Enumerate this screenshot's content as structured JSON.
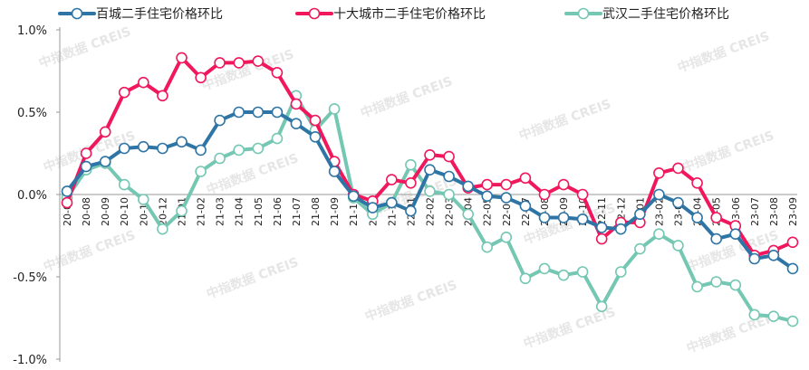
{
  "watermark": "中指数据 CREIS",
  "chart_data": {
    "type": "line",
    "title": "",
    "xlabel": "",
    "ylabel": "",
    "ylim": [
      -1.0,
      1.0
    ],
    "yticks": [
      1.0,
      0.5,
      0.0,
      -0.5,
      -1.0
    ],
    "ytick_labels": [
      "1.0%",
      "0.5%",
      "0.0%",
      "-0.5%",
      "-1.0%"
    ],
    "categories": [
      "20-07",
      "20-08",
      "20-09",
      "20-10",
      "20-11",
      "20-12",
      "21-01",
      "21-02",
      "21-03",
      "21-04",
      "21-05",
      "21-06",
      "21-07",
      "21-08",
      "21-09",
      "21-10",
      "21-11",
      "21-12",
      "22-01",
      "22-02",
      "22-03",
      "22-04",
      "22-05",
      "22-06",
      "22-07",
      "22-08",
      "22-09",
      "22-10",
      "22-11",
      "22-12",
      "23-01",
      "23-02",
      "23-03",
      "23-04",
      "23-05",
      "23-06",
      "23-07",
      "23-08",
      "23-09"
    ],
    "legend_position": "top",
    "grid": false,
    "series": [
      {
        "name": "百城二手住宅价格环比",
        "color": "#2e75a6",
        "values": [
          0.02,
          0.17,
          0.2,
          0.28,
          0.29,
          0.28,
          0.32,
          0.27,
          0.45,
          0.5,
          0.5,
          0.5,
          0.43,
          0.35,
          0.14,
          -0.01,
          -0.08,
          -0.05,
          -0.1,
          0.15,
          0.11,
          0.05,
          -0.01,
          -0.02,
          -0.07,
          -0.14,
          -0.14,
          -0.15,
          -0.2,
          -0.21,
          -0.12,
          0.0,
          -0.05,
          -0.14,
          -0.27,
          -0.24,
          -0.39,
          -0.37,
          -0.45
        ]
      },
      {
        "name": "十大城市二手住宅价格环比",
        "color": "#f0175c",
        "values": [
          -0.05,
          0.25,
          0.38,
          0.62,
          0.68,
          0.6,
          0.83,
          0.71,
          0.8,
          0.8,
          0.81,
          0.74,
          0.55,
          0.45,
          0.2,
          0.0,
          -0.04,
          0.09,
          0.07,
          0.24,
          0.23,
          0.04,
          0.06,
          0.06,
          0.1,
          0.0,
          0.06,
          0.0,
          -0.27,
          -0.17,
          -0.17,
          0.13,
          0.16,
          0.07,
          -0.14,
          -0.19,
          -0.37,
          -0.34,
          -0.29
        ]
      },
      {
        "name": "武汉二手住宅价格环比",
        "color": "#74c7b2",
        "values": [
          -0.02,
          0.15,
          0.19,
          0.06,
          -0.03,
          -0.21,
          -0.1,
          0.14,
          0.22,
          0.27,
          0.28,
          0.34,
          0.6,
          0.39,
          0.52,
          -0.02,
          -0.12,
          -0.05,
          0.18,
          0.02,
          0.0,
          -0.12,
          -0.32,
          -0.26,
          -0.51,
          -0.45,
          -0.49,
          -0.47,
          -0.68,
          -0.47,
          -0.33,
          -0.24,
          -0.31,
          -0.56,
          -0.53,
          -0.55,
          -0.73,
          -0.74,
          -0.77
        ]
      }
    ]
  }
}
